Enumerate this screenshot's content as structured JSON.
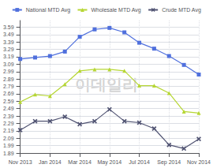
{
  "chart_data": {
    "type": "line",
    "categories": [
      "Nov 2013",
      null,
      "Jan 2014",
      null,
      "Mar 2014",
      null,
      "May 2014",
      null,
      "Jul 2014",
      null,
      "Sep 2014",
      null,
      "Nov 2014"
    ],
    "series": [
      {
        "name": "National MTD Avg",
        "marker": "square",
        "values": [
          3.16,
          3.18,
          3.2,
          3.26,
          3.46,
          3.56,
          3.58,
          3.52,
          3.38,
          3.3,
          3.2,
          3.08,
          2.95
        ]
      },
      {
        "name": "Wholesale MTD Avg",
        "marker": "triangle",
        "values": [
          2.58,
          2.68,
          2.66,
          2.82,
          3.0,
          3.02,
          3.02,
          3.0,
          2.8,
          2.8,
          2.7,
          2.45,
          2.43
        ]
      },
      {
        "name": "Crude MTD Avg",
        "marker": "x",
        "values": [
          2.2,
          2.32,
          2.32,
          2.38,
          2.28,
          2.32,
          2.48,
          2.32,
          2.3,
          2.22,
          2.0,
          1.95,
          2.08
        ]
      }
    ],
    "ylim": [
      1.89,
      3.68
    ],
    "yticks": [
      1.89,
      1.99,
      2.09,
      2.19,
      2.29,
      2.39,
      2.49,
      2.59,
      2.69,
      2.79,
      2.89,
      2.99,
      3.09,
      3.19,
      3.29,
      3.39,
      3.49,
      3.59
    ],
    "grid": true,
    "legend": "top",
    "annotations": [
      "이데일리"
    ]
  }
}
